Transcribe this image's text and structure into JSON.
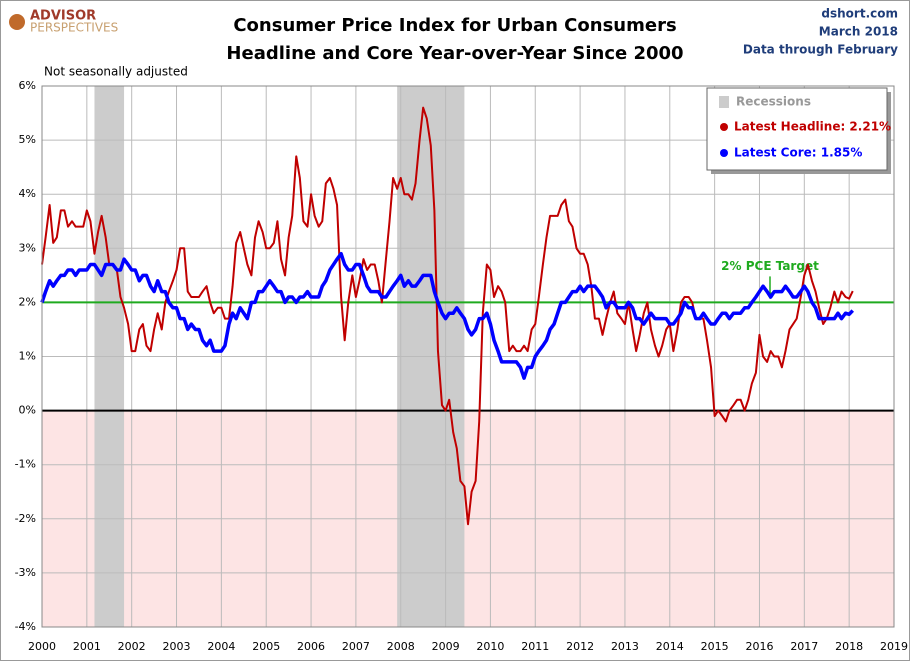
{
  "chart_data": {
    "type": "line",
    "title": "Consumer Price Index for Urban Consumers",
    "subtitle": "Headline and Core Year-over-Year Since 2000",
    "logo_top": "ADVISOR",
    "logo_bottom": "PERSPECTIVES",
    "source": "dshort.com",
    "date": "March 2018",
    "data_note": "Data through February",
    "note": "Not seasonally adjusted",
    "target_label": "2% PCE Target",
    "target_value": 2,
    "target_color": "#1faa1f",
    "recession_label": "Recessions",
    "recession_color": "#cccccc",
    "recessions": [
      [
        2001.17,
        2001.83
      ],
      [
        2007.92,
        2009.42
      ]
    ],
    "grid": true,
    "xlim": [
      2000,
      2019
    ],
    "xticks": [
      2000,
      2001,
      2002,
      2003,
      2004,
      2005,
      2006,
      2007,
      2008,
      2009,
      2010,
      2011,
      2012,
      2013,
      2014,
      2015,
      2016,
      2017,
      2018,
      2019
    ],
    "ylim": [
      -4,
      6
    ],
    "yticks": [
      {
        "value": -4,
        "label": "-4%"
      },
      {
        "value": -3,
        "label": "-3%"
      },
      {
        "value": -2,
        "label": "-2%"
      },
      {
        "value": -1,
        "label": "-1%"
      },
      {
        "value": 0,
        "label": "0%"
      },
      {
        "value": 1,
        "label": "1%"
      },
      {
        "value": 2,
        "label": "2%"
      },
      {
        "value": 3,
        "label": "3%"
      },
      {
        "value": 4,
        "label": "4%"
      },
      {
        "value": 5,
        "label": "5%"
      },
      {
        "value": 6,
        "label": "6%"
      }
    ],
    "x": [
      2000,
      2000.08,
      2000.17,
      2000.25,
      2000.33,
      2000.42,
      2000.5,
      2000.58,
      2000.67,
      2000.75,
      2000.83,
      2000.92,
      2001,
      2001.08,
      2001.17,
      2001.25,
      2001.33,
      2001.42,
      2001.5,
      2001.58,
      2001.67,
      2001.75,
      2001.83,
      2001.92,
      2002,
      2002.08,
      2002.17,
      2002.25,
      2002.33,
      2002.42,
      2002.5,
      2002.58,
      2002.67,
      2002.75,
      2002.83,
      2002.92,
      2003,
      2003.08,
      2003.17,
      2003.25,
      2003.33,
      2003.42,
      2003.5,
      2003.58,
      2003.67,
      2003.75,
      2003.83,
      2003.92,
      2004,
      2004.08,
      2004.17,
      2004.25,
      2004.33,
      2004.42,
      2004.5,
      2004.58,
      2004.67,
      2004.75,
      2004.83,
      2004.92,
      2005,
      2005.08,
      2005.17,
      2005.25,
      2005.33,
      2005.42,
      2005.5,
      2005.58,
      2005.67,
      2005.75,
      2005.83,
      2005.92,
      2006,
      2006.08,
      2006.17,
      2006.25,
      2006.33,
      2006.42,
      2006.5,
      2006.58,
      2006.67,
      2006.75,
      2006.83,
      2006.92,
      2007,
      2007.08,
      2007.17,
      2007.25,
      2007.33,
      2007.42,
      2007.5,
      2007.58,
      2007.67,
      2007.75,
      2007.83,
      2007.92,
      2008,
      2008.08,
      2008.17,
      2008.25,
      2008.33,
      2008.42,
      2008.5,
      2008.58,
      2008.67,
      2008.75,
      2008.83,
      2008.92,
      2009,
      2009.08,
      2009.17,
      2009.25,
      2009.33,
      2009.42,
      2009.5,
      2009.58,
      2009.67,
      2009.75,
      2009.83,
      2009.92,
      2010,
      2010.08,
      2010.17,
      2010.25,
      2010.33,
      2010.42,
      2010.5,
      2010.58,
      2010.67,
      2010.75,
      2010.83,
      2010.92,
      2011,
      2011.08,
      2011.17,
      2011.25,
      2011.33,
      2011.42,
      2011.5,
      2011.58,
      2011.67,
      2011.75,
      2011.83,
      2011.92,
      2012,
      2012.08,
      2012.17,
      2012.25,
      2012.33,
      2012.42,
      2012.5,
      2012.58,
      2012.67,
      2012.75,
      2012.83,
      2012.92,
      2013,
      2013.08,
      2013.17,
      2013.25,
      2013.33,
      2013.42,
      2013.5,
      2013.58,
      2013.67,
      2013.75,
      2013.83,
      2013.92,
      2014,
      2014.08,
      2014.17,
      2014.25,
      2014.33,
      2014.42,
      2014.5,
      2014.58,
      2014.67,
      2014.75,
      2014.83,
      2014.92,
      2015,
      2015.08,
      2015.17,
      2015.25,
      2015.33,
      2015.42,
      2015.5,
      2015.58,
      2015.67,
      2015.75,
      2015.83,
      2015.92,
      2016,
      2016.08,
      2016.17,
      2016.25,
      2016.33,
      2016.42,
      2016.5,
      2016.58,
      2016.67,
      2016.75,
      2016.83,
      2016.92,
      2017,
      2017.08,
      2017.17,
      2017.25,
      2017.33,
      2017.42,
      2017.5,
      2017.58,
      2017.67,
      2017.75,
      2017.83,
      2017.92,
      2018,
      2018.08
    ],
    "series": [
      {
        "name": "Latest Headline:  2.21%",
        "color": "#c00000",
        "width": 2,
        "values": [
          2.7,
          3.2,
          3.8,
          3.1,
          3.2,
          3.7,
          3.7,
          3.4,
          3.5,
          3.4,
          3.4,
          3.4,
          3.7,
          3.5,
          2.9,
          3.3,
          3.6,
          3.2,
          2.7,
          2.7,
          2.6,
          2.1,
          1.9,
          1.6,
          1.1,
          1.1,
          1.5,
          1.6,
          1.2,
          1.1,
          1.5,
          1.8,
          1.5,
          2.0,
          2.2,
          2.4,
          2.6,
          3.0,
          3.0,
          2.2,
          2.1,
          2.1,
          2.1,
          2.2,
          2.3,
          2.0,
          1.8,
          1.9,
          1.9,
          1.7,
          1.7,
          2.3,
          3.1,
          3.3,
          3.0,
          2.7,
          2.5,
          3.2,
          3.5,
          3.3,
          3.0,
          3.0,
          3.1,
          3.5,
          2.8,
          2.5,
          3.2,
          3.6,
          4.7,
          4.3,
          3.5,
          3.4,
          4.0,
          3.6,
          3.4,
          3.5,
          4.2,
          4.3,
          4.1,
          3.8,
          2.1,
          1.3,
          2.0,
          2.5,
          2.1,
          2.4,
          2.8,
          2.6,
          2.7,
          2.7,
          2.4,
          2.0,
          2.8,
          3.5,
          4.3,
          4.1,
          4.3,
          4.0,
          4.0,
          3.9,
          4.2,
          5.0,
          5.6,
          5.4,
          4.9,
          3.7,
          1.1,
          0.1,
          0.0,
          0.2,
          -0.4,
          -0.7,
          -1.3,
          -1.4,
          -2.1,
          -1.5,
          -1.3,
          -0.2,
          1.8,
          2.7,
          2.6,
          2.1,
          2.3,
          2.2,
          2.0,
          1.1,
          1.2,
          1.1,
          1.1,
          1.2,
          1.1,
          1.5,
          1.6,
          2.1,
          2.7,
          3.2,
          3.6,
          3.6,
          3.6,
          3.8,
          3.9,
          3.5,
          3.4,
          3.0,
          2.9,
          2.9,
          2.7,
          2.3,
          1.7,
          1.7,
          1.4,
          1.7,
          2.0,
          2.2,
          1.8,
          1.7,
          1.6,
          2.0,
          1.5,
          1.1,
          1.4,
          1.8,
          2.0,
          1.5,
          1.2,
          1.0,
          1.2,
          1.5,
          1.6,
          1.1,
          1.5,
          2.0,
          2.1,
          2.1,
          2.0,
          1.7,
          1.7,
          1.7,
          1.3,
          0.8,
          -0.1,
          0.0,
          -0.1,
          -0.2,
          0.0,
          0.1,
          0.2,
          0.2,
          0.0,
          0.2,
          0.5,
          0.7,
          1.4,
          1.0,
          0.9,
          1.1,
          1.0,
          1.0,
          0.8,
          1.1,
          1.5,
          1.6,
          1.7,
          2.1,
          2.5,
          2.7,
          2.4,
          2.2,
          1.9,
          1.6,
          1.7,
          1.9,
          2.2,
          2.0,
          2.2,
          2.1,
          2.07,
          2.21
        ]
      },
      {
        "name": "Latest Core:  1.85%",
        "color": "#0000ff",
        "width": 3.5,
        "values": [
          2.0,
          2.2,
          2.4,
          2.3,
          2.4,
          2.5,
          2.5,
          2.6,
          2.6,
          2.5,
          2.6,
          2.6,
          2.6,
          2.7,
          2.7,
          2.6,
          2.5,
          2.7,
          2.7,
          2.7,
          2.6,
          2.6,
          2.8,
          2.7,
          2.6,
          2.6,
          2.4,
          2.5,
          2.5,
          2.3,
          2.2,
          2.4,
          2.2,
          2.2,
          2.0,
          1.9,
          1.9,
          1.7,
          1.7,
          1.5,
          1.6,
          1.5,
          1.5,
          1.3,
          1.2,
          1.3,
          1.1,
          1.1,
          1.1,
          1.2,
          1.6,
          1.8,
          1.7,
          1.9,
          1.8,
          1.7,
          2.0,
          2.0,
          2.2,
          2.2,
          2.3,
          2.4,
          2.3,
          2.2,
          2.2,
          2.0,
          2.1,
          2.1,
          2.0,
          2.1,
          2.1,
          2.2,
          2.1,
          2.1,
          2.1,
          2.3,
          2.4,
          2.6,
          2.7,
          2.8,
          2.9,
          2.7,
          2.6,
          2.6,
          2.7,
          2.7,
          2.5,
          2.3,
          2.2,
          2.2,
          2.2,
          2.1,
          2.1,
          2.2,
          2.3,
          2.4,
          2.5,
          2.3,
          2.4,
          2.3,
          2.3,
          2.4,
          2.5,
          2.5,
          2.5,
          2.2,
          2.0,
          1.8,
          1.7,
          1.8,
          1.8,
          1.9,
          1.8,
          1.7,
          1.5,
          1.4,
          1.5,
          1.7,
          1.7,
          1.8,
          1.6,
          1.3,
          1.1,
          0.9,
          0.9,
          0.9,
          0.9,
          0.9,
          0.8,
          0.6,
          0.8,
          0.8,
          1.0,
          1.1,
          1.2,
          1.3,
          1.5,
          1.6,
          1.8,
          2.0,
          2.0,
          2.1,
          2.2,
          2.2,
          2.3,
          2.2,
          2.3,
          2.3,
          2.3,
          2.2,
          2.1,
          1.9,
          2.0,
          2.0,
          1.9,
          1.9,
          1.9,
          2.0,
          1.9,
          1.7,
          1.7,
          1.6,
          1.7,
          1.8,
          1.7,
          1.7,
          1.7,
          1.7,
          1.6,
          1.6,
          1.7,
          1.8,
          2.0,
          1.9,
          1.9,
          1.7,
          1.7,
          1.8,
          1.7,
          1.6,
          1.6,
          1.7,
          1.8,
          1.8,
          1.7,
          1.8,
          1.8,
          1.8,
          1.9,
          1.9,
          2.0,
          2.1,
          2.2,
          2.3,
          2.2,
          2.1,
          2.2,
          2.2,
          2.2,
          2.3,
          2.2,
          2.1,
          2.1,
          2.2,
          2.3,
          2.2,
          2.0,
          1.9,
          1.7,
          1.7,
          1.7,
          1.7,
          1.7,
          1.8,
          1.7,
          1.8,
          1.78,
          1.85
        ]
      }
    ]
  }
}
